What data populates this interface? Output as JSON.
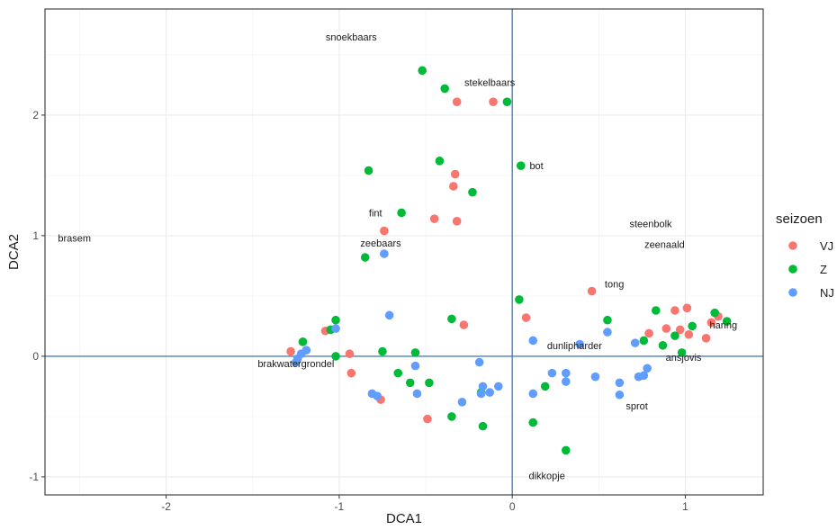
{
  "chart_data": {
    "type": "scatter",
    "title": "",
    "xlabel": "DCA1",
    "ylabel": "DCA2",
    "xlim": [
      -2.7,
      1.45
    ],
    "ylim": [
      -1.15,
      2.88
    ],
    "xticks": [
      -2,
      -1,
      0,
      1
    ],
    "yticks": [
      -1,
      0,
      1,
      2
    ],
    "xtick_labels": [
      "-2",
      "-1",
      "0",
      "1"
    ],
    "ytick_labels": [
      "-1",
      "0",
      "1",
      "2"
    ],
    "grid": true,
    "reference_lines": {
      "x": 0,
      "y": 0,
      "color": "#4a7fbf"
    },
    "legend": {
      "title": "seizoen",
      "position": "right"
    },
    "series": [
      {
        "name": "VJ",
        "color": "#f8766d",
        "points": [
          [
            -0.32,
            2.11
          ],
          [
            -0.11,
            2.11
          ],
          [
            -0.33,
            1.51
          ],
          [
            -0.34,
            1.41
          ],
          [
            -0.45,
            1.14
          ],
          [
            -0.32,
            1.12
          ],
          [
            -0.74,
            1.04
          ],
          [
            0.46,
            0.54
          ],
          [
            0.08,
            0.32
          ],
          [
            -0.28,
            0.26
          ],
          [
            -1.08,
            0.21
          ],
          [
            -1.28,
            0.04
          ],
          [
            -0.94,
            0.02
          ],
          [
            -0.93,
            -0.14
          ],
          [
            -0.76,
            -0.36
          ],
          [
            -0.49,
            -0.52
          ],
          [
            0.79,
            0.19
          ],
          [
            0.89,
            0.23
          ],
          [
            0.94,
            0.38
          ],
          [
            1.01,
            0.4
          ],
          [
            0.97,
            0.22
          ],
          [
            1.02,
            0.18
          ],
          [
            1.12,
            0.15
          ],
          [
            1.15,
            0.28
          ],
          [
            1.19,
            0.33
          ]
        ]
      },
      {
        "name": "Z",
        "color": "#00ba38",
        "points": [
          [
            -0.52,
            2.37
          ],
          [
            -0.39,
            2.22
          ],
          [
            -0.03,
            2.11
          ],
          [
            -0.42,
            1.62
          ],
          [
            -0.83,
            1.54
          ],
          [
            0.05,
            1.58
          ],
          [
            -0.23,
            1.36
          ],
          [
            -0.64,
            1.19
          ],
          [
            -0.85,
            0.82
          ],
          [
            0.04,
            0.47
          ],
          [
            -0.35,
            0.31
          ],
          [
            -1.02,
            0.3
          ],
          [
            -1.05,
            0.22
          ],
          [
            -1.21,
            0.12
          ],
          [
            -0.75,
            0.04
          ],
          [
            -0.56,
            0.03
          ],
          [
            -1.02,
            0.0
          ],
          [
            -0.66,
            -0.14
          ],
          [
            -0.59,
            -0.22
          ],
          [
            -0.48,
            -0.22
          ],
          [
            -0.18,
            -0.3
          ],
          [
            -0.35,
            -0.5
          ],
          [
            -0.17,
            -0.58
          ],
          [
            0.12,
            -0.55
          ],
          [
            0.19,
            -0.25
          ],
          [
            0.31,
            -0.78
          ],
          [
            0.55,
            0.3
          ],
          [
            0.76,
            0.13
          ],
          [
            0.83,
            0.38
          ],
          [
            0.87,
            0.09
          ],
          [
            0.94,
            0.17
          ],
          [
            0.98,
            0.03
          ],
          [
            1.04,
            0.25
          ],
          [
            1.17,
            0.36
          ],
          [
            1.24,
            0.29
          ]
        ]
      },
      {
        "name": "NJ",
        "color": "#619cff",
        "points": [
          [
            -0.74,
            0.85
          ],
          [
            -0.71,
            0.34
          ],
          [
            -1.02,
            0.23
          ],
          [
            -1.19,
            0.05
          ],
          [
            -1.22,
            0.02
          ],
          [
            -1.24,
            -0.02
          ],
          [
            -1.25,
            -0.05
          ],
          [
            -0.56,
            -0.08
          ],
          [
            -0.55,
            -0.31
          ],
          [
            -0.81,
            -0.31
          ],
          [
            -0.78,
            -0.33
          ],
          [
            -0.29,
            -0.38
          ],
          [
            -0.19,
            -0.05
          ],
          [
            -0.17,
            -0.25
          ],
          [
            -0.18,
            -0.31
          ],
          [
            -0.13,
            -0.3
          ],
          [
            -0.08,
            -0.25
          ],
          [
            0.12,
            0.13
          ],
          [
            0.12,
            -0.31
          ],
          [
            0.23,
            -0.14
          ],
          [
            0.31,
            -0.14
          ],
          [
            0.31,
            -0.21
          ],
          [
            0.39,
            0.1
          ],
          [
            0.48,
            -0.17
          ],
          [
            0.55,
            0.2
          ],
          [
            0.62,
            -0.22
          ],
          [
            0.62,
            -0.32
          ],
          [
            0.71,
            0.11
          ],
          [
            0.73,
            -0.17
          ],
          [
            0.76,
            -0.16
          ],
          [
            0.78,
            -0.1
          ]
        ]
      }
    ],
    "labels": [
      {
        "text": "snoekbaars",
        "x": -0.93,
        "y": 2.65
      },
      {
        "text": "stekelbaars",
        "x": -0.13,
        "y": 2.27
      },
      {
        "text": "bot",
        "x": 0.14,
        "y": 1.58
      },
      {
        "text": "fint",
        "x": -0.79,
        "y": 1.19
      },
      {
        "text": "brasem",
        "x": -2.53,
        "y": 0.98
      },
      {
        "text": "zeebaars",
        "x": -0.76,
        "y": 0.94
      },
      {
        "text": "steenbolk",
        "x": 0.8,
        "y": 1.1
      },
      {
        "text": "zeenaald",
        "x": 0.88,
        "y": 0.93
      },
      {
        "text": "tong",
        "x": 0.59,
        "y": 0.6
      },
      {
        "text": "haring",
        "x": 1.22,
        "y": 0.26
      },
      {
        "text": "dunlipharder",
        "x": 0.36,
        "y": 0.09
      },
      {
        "text": "ansjovis",
        "x": 0.99,
        "y": -0.01
      },
      {
        "text": "brakwatergrondel",
        "x": -1.25,
        "y": -0.06
      },
      {
        "text": "sprot",
        "x": 0.72,
        "y": -0.41
      },
      {
        "text": "dikkopje",
        "x": 0.2,
        "y": -0.99
      }
    ]
  }
}
